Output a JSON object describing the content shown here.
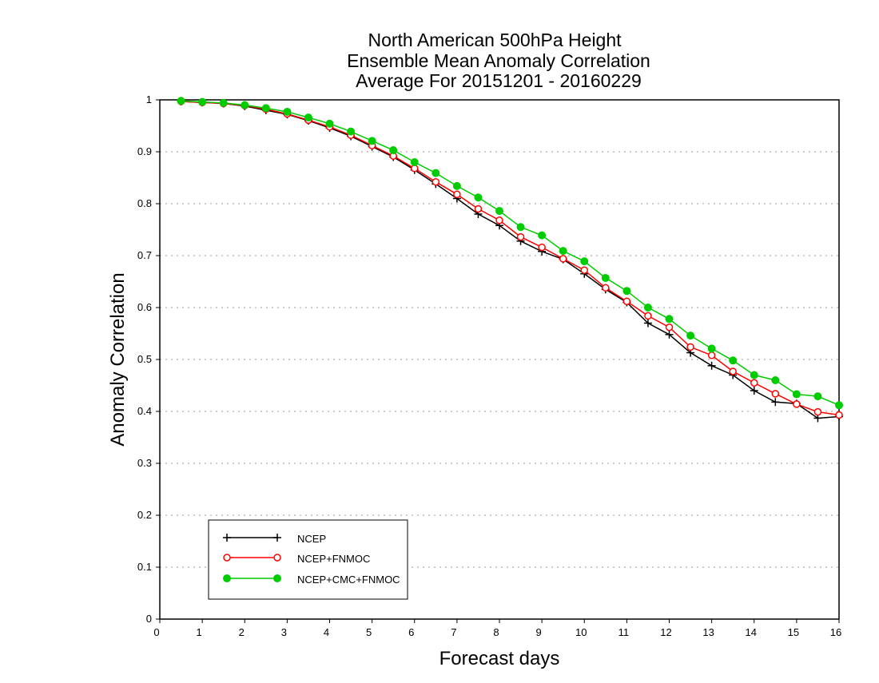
{
  "chart_data": {
    "type": "line",
    "title": [
      "North American 500hPa Height",
      "Ensemble Mean Anomaly Correlation",
      "Average For 20151201 - 20160229"
    ],
    "xlabel": "Forecast days",
    "ylabel": "Anomaly Correlation",
    "xlim": [
      0,
      16
    ],
    "ylim": [
      0,
      1
    ],
    "xticks": [
      "0",
      "1",
      "2",
      "3",
      "4",
      "5",
      "6",
      "7",
      "8",
      "9",
      "10",
      "11",
      "12",
      "13",
      "14",
      "15",
      "16"
    ],
    "yticks": [
      "0",
      "0.1",
      "0.2",
      "0.3",
      "0.4",
      "0.5",
      "0.6",
      "0.7",
      "0.8",
      "0.9",
      "1"
    ],
    "grid": "horizontal dotted",
    "legend_position": "bottom-left",
    "x": [
      0.5,
      1,
      1.5,
      2,
      2.5,
      3,
      3.5,
      4,
      4.5,
      5,
      5.5,
      6,
      6.5,
      7,
      7.5,
      8,
      8.5,
      9,
      9.5,
      10,
      10.5,
      11,
      11.5,
      12,
      12.5,
      13,
      13.5,
      14,
      14.5,
      15,
      15.5,
      16
    ],
    "series": [
      {
        "name": "NCEP",
        "color": "#000000",
        "marker": "plus",
        "values": [
          0.997,
          0.995,
          0.993,
          0.988,
          0.98,
          0.972,
          0.96,
          0.946,
          0.93,
          0.91,
          0.89,
          0.865,
          0.838,
          0.81,
          0.78,
          0.758,
          0.728,
          0.708,
          0.693,
          0.665,
          0.635,
          0.61,
          0.57,
          0.548,
          0.513,
          0.488,
          0.47,
          0.44,
          0.418,
          0.415,
          0.387,
          0.39
        ]
      },
      {
        "name": "NCEP+FNMOC",
        "color": "#ff0000",
        "marker": "open-circle",
        "values": [
          0.997,
          0.995,
          0.993,
          0.989,
          0.982,
          0.973,
          0.961,
          0.948,
          0.932,
          0.912,
          0.892,
          0.868,
          0.842,
          0.818,
          0.79,
          0.768,
          0.736,
          0.716,
          0.694,
          0.672,
          0.638,
          0.612,
          0.584,
          0.562,
          0.524,
          0.508,
          0.477,
          0.455,
          0.434,
          0.414,
          0.399,
          0.393
        ]
      },
      {
        "name": "NCEP+CMC+FNMOC",
        "color": "#00cc00",
        "marker": "filled-circle",
        "values": [
          0.998,
          0.996,
          0.994,
          0.99,
          0.984,
          0.977,
          0.966,
          0.954,
          0.939,
          0.921,
          0.903,
          0.88,
          0.859,
          0.834,
          0.812,
          0.786,
          0.755,
          0.739,
          0.709,
          0.689,
          0.657,
          0.632,
          0.6,
          0.578,
          0.546,
          0.521,
          0.498,
          0.47,
          0.46,
          0.433,
          0.429,
          0.412
        ]
      }
    ]
  }
}
